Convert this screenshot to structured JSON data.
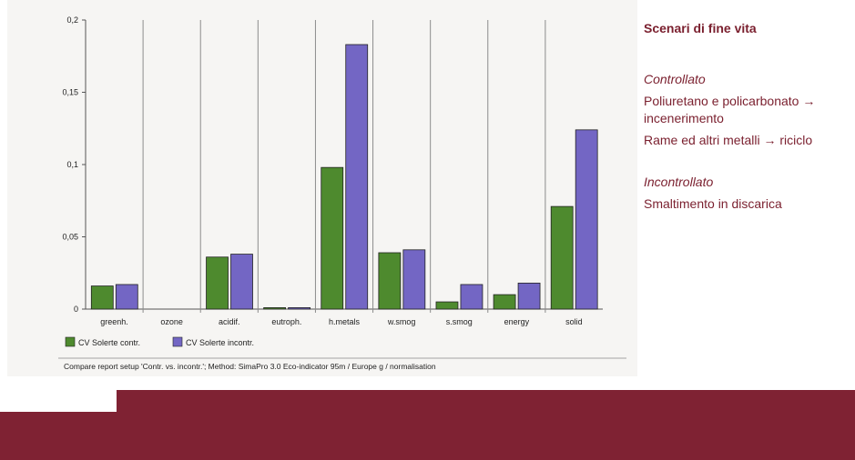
{
  "chart_data": {
    "type": "bar",
    "categories": [
      "greenh.",
      "ozone",
      "acidif.",
      "eutroph.",
      "h.metals",
      "w.smog",
      "s.smog",
      "energy",
      "solid"
    ],
    "series": [
      {
        "name": "CV Solerte contr.",
        "color": "#4e8a2e",
        "values": [
          0.016,
          0,
          0.036,
          0.001,
          0.098,
          0.039,
          0.005,
          0.01,
          0.071
        ]
      },
      {
        "name": "CV Solerte incontr.",
        "color": "#7366c4",
        "values": [
          0.017,
          0,
          0.038,
          0.001,
          0.183,
          0.041,
          0.017,
          0.018,
          0.124
        ]
      }
    ],
    "yticks": [
      0,
      0.05,
      0.1,
      0.15,
      0.2
    ],
    "ytick_labels": [
      "0",
      "0,05",
      "0,1",
      "0,15",
      "0,2"
    ],
    "ylim": [
      0,
      0.2
    ],
    "grid": "vertical separators between categories",
    "legend_placement": "bottom-left",
    "footer": "Compare report setup 'Contr. vs. incontr.'; Method: SimaPro 3.0 Eco-indicator 95m / Europe g / normalisation"
  },
  "panel": {
    "title": "Scenari di fine vita",
    "controlled_heading": "Controllato",
    "controlled_items": [
      "Poliuretano e policarbonato → incenerimento",
      "Rame ed altri metalli → riciclo"
    ],
    "uncontrolled_heading": "Incontrollato",
    "uncontrolled_items": [
      "Smaltimento in discarica"
    ]
  },
  "colors": {
    "accent": "#7f2233",
    "panel_text": "#7a1f2e"
  }
}
